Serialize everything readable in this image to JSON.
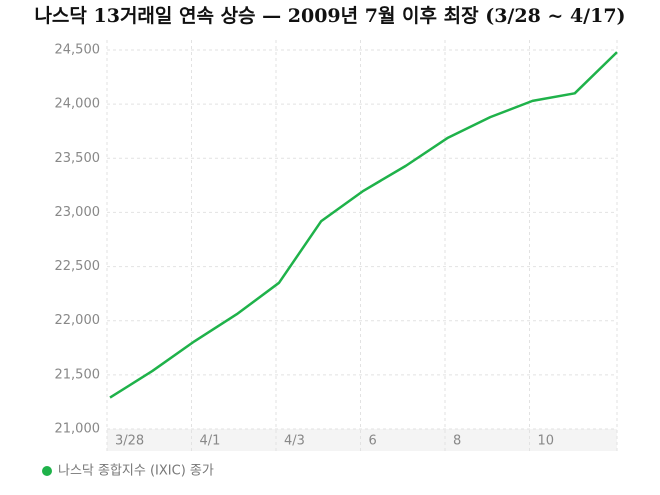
{
  "chart_data": {
    "type": "line",
    "title": "나스닥 13거래일 연속 상승 — 2009년 7월 이후 최장 (3/28 ~ 4/17)",
    "categories": [
      "3/28",
      null,
      "4/1",
      null,
      "4/3",
      null,
      "6",
      null,
      "8",
      null,
      "10",
      null,
      null
    ],
    "series": [
      {
        "name": "나스닥 종합지수 (IXIC) 종가",
        "color": "#1fb24a",
        "values": [
          21290,
          21535,
          21810,
          22060,
          22350,
          22920,
          23200,
          23430,
          23690,
          23880,
          24030,
          24100,
          24480
        ]
      }
    ],
    "ylim": [
      21000,
      24500
    ],
    "yticks": [
      {
        "value": 21000,
        "label": "21,000"
      },
      {
        "value": 21500,
        "label": "21,500"
      },
      {
        "value": 22000,
        "label": "22,000"
      },
      {
        "value": 22500,
        "label": "22,500"
      },
      {
        "value": 23000,
        "label": "23,000"
      },
      {
        "value": 23500,
        "label": "23,500"
      },
      {
        "value": 24000,
        "label": "24,000"
      },
      {
        "value": 24500,
        "label": "24,500"
      }
    ],
    "grid": true
  }
}
